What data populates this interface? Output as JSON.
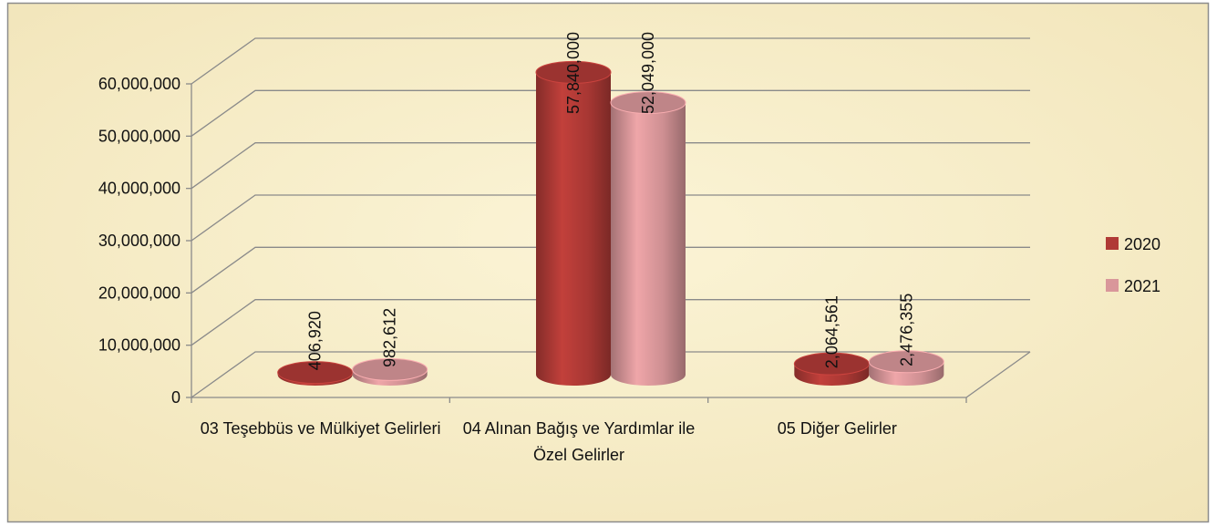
{
  "chart_data": {
    "type": "bar3d",
    "categories": [
      "03 Teşebbüs ve Mülkiyet Gelirleri",
      "04 Alınan Bağış ve Yardımlar ile Özel Gelirler",
      "05 Diğer Gelirler"
    ],
    "series": [
      {
        "name": "2020",
        "color": "#b03a36",
        "values": [
          406920,
          57840000,
          2064561
        ],
        "value_labels": [
          "406,920",
          "57,840,000",
          "2,064,561"
        ]
      },
      {
        "name": "2021",
        "color": "#d9979a",
        "values": [
          982612,
          52049000,
          2476355
        ],
        "value_labels": [
          "982,612",
          "52,049,000",
          "2,476,355"
        ]
      }
    ],
    "ylim": [
      0,
      60000000
    ],
    "yticks": [
      0,
      {
        "value": 10000000,
        "label": "10,000,000"
      },
      {
        "value": 20000000,
        "label": "20,000,000"
      },
      {
        "value": 30000000,
        "label": "30,000,000"
      },
      {
        "value": 40000000,
        "label": "40,000,000"
      },
      {
        "value": 50000000,
        "label": "50,000,000"
      },
      {
        "value": 60000000,
        "label": "60,000,000"
      }
    ],
    "grid": true,
    "legend": "right"
  }
}
